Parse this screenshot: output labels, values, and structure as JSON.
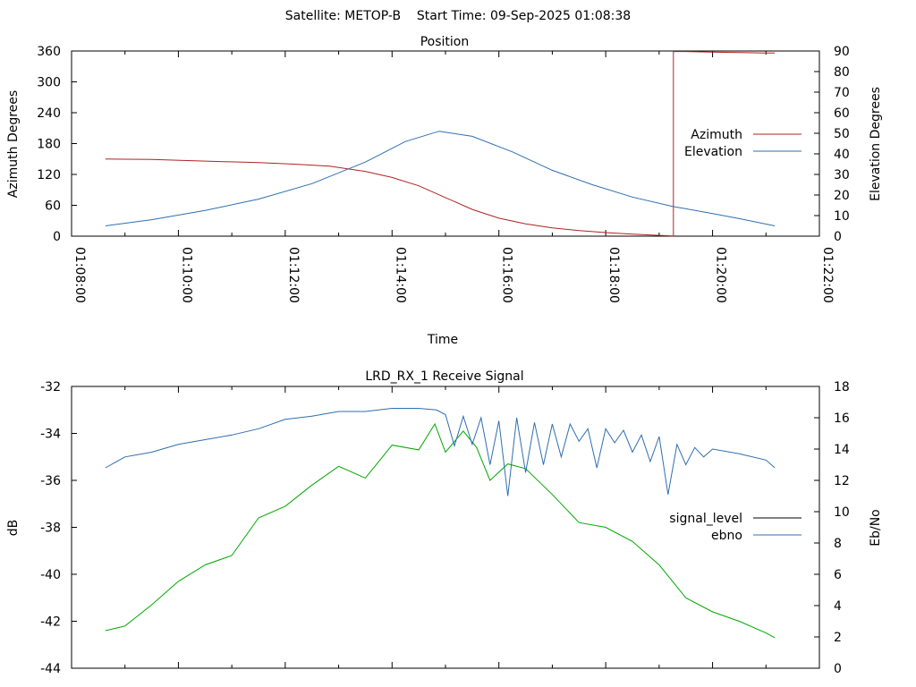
{
  "suptitle": "Satellite: METOP-B    Start Time: 09-Sep-2025 01:08:38",
  "colors": {
    "azimuth": "#b02222",
    "elevation": "#2d6fb0",
    "signal_level": "#00a800",
    "ebno": "#2d6fb0",
    "legend_signal_level": "#000000",
    "axes": "#000000"
  },
  "chart_data": [
    {
      "type": "line",
      "title": "Position",
      "xlabel": "Time",
      "ylabel": "Azimuth Degrees",
      "y2label": "Elevation Degrees",
      "xlim": [
        "01:08:00",
        "01:22:00"
      ],
      "ylim": [
        0,
        360
      ],
      "y2lim": [
        0,
        90
      ],
      "xticks": [
        "01:08:00",
        "01:10:00",
        "01:12:00",
        "01:14:00",
        "01:16:00",
        "01:18:00",
        "01:20:00",
        "01:22:00"
      ],
      "yticks": [
        0,
        60,
        120,
        180,
        240,
        300,
        360
      ],
      "y2ticks": [
        0,
        10,
        20,
        30,
        40,
        50,
        60,
        70,
        80,
        90
      ],
      "legend": "right",
      "grid": false,
      "series": [
        {
          "name": "Azimuth",
          "axis": "y",
          "x": [
            "01:08:38",
            "01:09:30",
            "01:10:30",
            "01:11:30",
            "01:12:10",
            "01:12:50",
            "01:13:30",
            "01:14:00",
            "01:14:30",
            "01:15:00",
            "01:15:30",
            "01:16:00",
            "01:16:30",
            "01:17:00",
            "01:17:30",
            "01:18:00",
            "01:18:30",
            "01:19:00",
            "01:19:15",
            "01:19:16",
            "01:19:30",
            "01:20:00",
            "01:20:30",
            "01:21:00",
            "01:21:10"
          ],
          "values": [
            150,
            149,
            146,
            143,
            140,
            136,
            126,
            114,
            98,
            75,
            52,
            35,
            24,
            16,
            11,
            7,
            4,
            1.5,
            0.5,
            359,
            359,
            358,
            357,
            356,
            356
          ]
        },
        {
          "name": "Elevation",
          "axis": "y2",
          "x": [
            "01:08:38",
            "01:09:30",
            "01:10:30",
            "01:11:30",
            "01:12:30",
            "01:13:30",
            "01:14:15",
            "01:14:53",
            "01:15:30",
            "01:16:15",
            "01:17:00",
            "01:17:45",
            "01:18:30",
            "01:19:15",
            "01:20:00",
            "01:20:30",
            "01:21:10"
          ],
          "values": [
            5,
            8,
            12.5,
            18,
            25.5,
            36,
            46,
            51,
            48.5,
            41,
            32,
            25,
            19,
            14.5,
            11,
            8.5,
            5
          ]
        }
      ]
    },
    {
      "type": "line",
      "title": "LRD_RX_1 Receive Signal",
      "xlabel": "",
      "ylabel": "dB",
      "y2label": "Eb/No",
      "xlim": [
        "01:08:00",
        "01:22:00"
      ],
      "ylim": [
        -44,
        -32
      ],
      "y2lim": [
        0,
        18
      ],
      "yticks": [
        -44,
        -42,
        -40,
        -38,
        -36,
        -34,
        -32
      ],
      "y2ticks": [
        0,
        2,
        4,
        6,
        8,
        10,
        12,
        14,
        16,
        18
      ],
      "legend": "right",
      "grid": false,
      "series": [
        {
          "name": "signal_level",
          "axis": "y",
          "x": [
            "01:08:38",
            "01:09:00",
            "01:09:30",
            "01:10:00",
            "01:10:30",
            "01:11:00",
            "01:11:30",
            "01:12:00",
            "01:12:30",
            "01:13:00",
            "01:13:30",
            "01:14:00",
            "01:14:30",
            "01:14:48",
            "01:15:00",
            "01:15:20",
            "01:15:35",
            "01:15:50",
            "01:16:10",
            "01:16:30",
            "01:17:00",
            "01:17:30",
            "01:18:00",
            "01:18:30",
            "01:19:00",
            "01:19:30",
            "01:20:00",
            "01:20:30",
            "01:21:00",
            "01:21:10"
          ],
          "values": [
            -42.4,
            -42.2,
            -41.3,
            -40.3,
            -39.6,
            -39.2,
            -37.6,
            -37.1,
            -36.2,
            -35.4,
            -35.9,
            -34.5,
            -34.7,
            -33.6,
            -34.8,
            -33.9,
            -34.6,
            -36.0,
            -35.3,
            -35.5,
            -36.6,
            -37.8,
            -38.0,
            -38.6,
            -39.6,
            -41.0,
            -41.6,
            -42.0,
            -42.5,
            -42.7
          ]
        },
        {
          "name": "ebno",
          "axis": "y2",
          "x": [
            "01:08:38",
            "01:09:00",
            "01:09:30",
            "01:10:00",
            "01:10:30",
            "01:11:00",
            "01:11:30",
            "01:12:00",
            "01:12:30",
            "01:13:00",
            "01:13:30",
            "01:14:00",
            "01:14:30",
            "01:14:50",
            "01:15:00",
            "01:15:10",
            "01:15:20",
            "01:15:30",
            "01:15:40",
            "01:15:50",
            "01:16:00",
            "01:16:10",
            "01:16:20",
            "01:16:30",
            "01:16:40",
            "01:16:50",
            "01:17:00",
            "01:17:10",
            "01:17:20",
            "01:17:30",
            "01:17:40",
            "01:17:50",
            "01:18:00",
            "01:18:10",
            "01:18:20",
            "01:18:30",
            "01:18:40",
            "01:18:50",
            "01:19:00",
            "01:19:10",
            "01:19:20",
            "01:19:30",
            "01:19:40",
            "01:19:50",
            "01:20:00",
            "01:20:30",
            "01:21:00",
            "01:21:10"
          ],
          "values": [
            12.8,
            13.5,
            13.8,
            14.3,
            14.6,
            14.9,
            15.3,
            15.9,
            16.1,
            16.4,
            16.4,
            16.6,
            16.6,
            16.5,
            16.2,
            14.2,
            16.1,
            14.3,
            16.0,
            13.0,
            15.8,
            11.0,
            16.0,
            12.5,
            15.7,
            13.0,
            15.6,
            13.5,
            15.6,
            14.5,
            15.3,
            12.8,
            15.3,
            14.4,
            15.2,
            13.8,
            14.9,
            13.2,
            14.8,
            11.1,
            14.3,
            13.0,
            14.1,
            13.5,
            14.0,
            13.7,
            13.3,
            12.8
          ]
        }
      ]
    }
  ]
}
